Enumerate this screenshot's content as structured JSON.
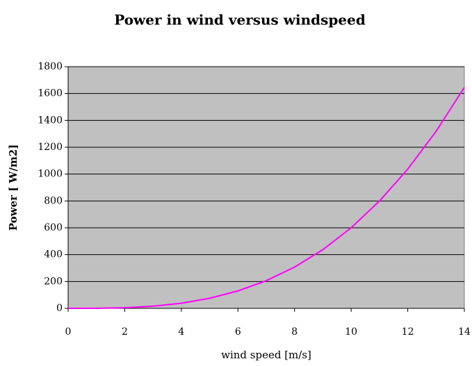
{
  "chart_data": {
    "type": "line",
    "title": "Power in wind versus windspeed",
    "xlabel": "wind speed [m/s]",
    "ylabel": "Power [ W/m2]",
    "x": [
      0,
      1,
      2,
      3,
      4,
      5,
      6,
      7,
      8,
      9,
      10,
      11,
      12,
      13,
      14
    ],
    "series": [
      {
        "name": "Power",
        "color": "#ff00ff",
        "values": [
          0,
          0.6,
          4.8,
          16,
          38,
          75,
          130,
          206,
          307,
          437,
          600,
          799,
          1037,
          1318,
          1646
        ]
      }
    ],
    "xlim": [
      0,
      14
    ],
    "xticks": [
      0,
      2,
      4,
      6,
      8,
      10,
      12,
      14
    ],
    "ylim": [
      0,
      1800
    ],
    "yticks": [
      0,
      200,
      400,
      600,
      800,
      1000,
      1200,
      1400,
      1600,
      1800
    ],
    "grid": true
  }
}
